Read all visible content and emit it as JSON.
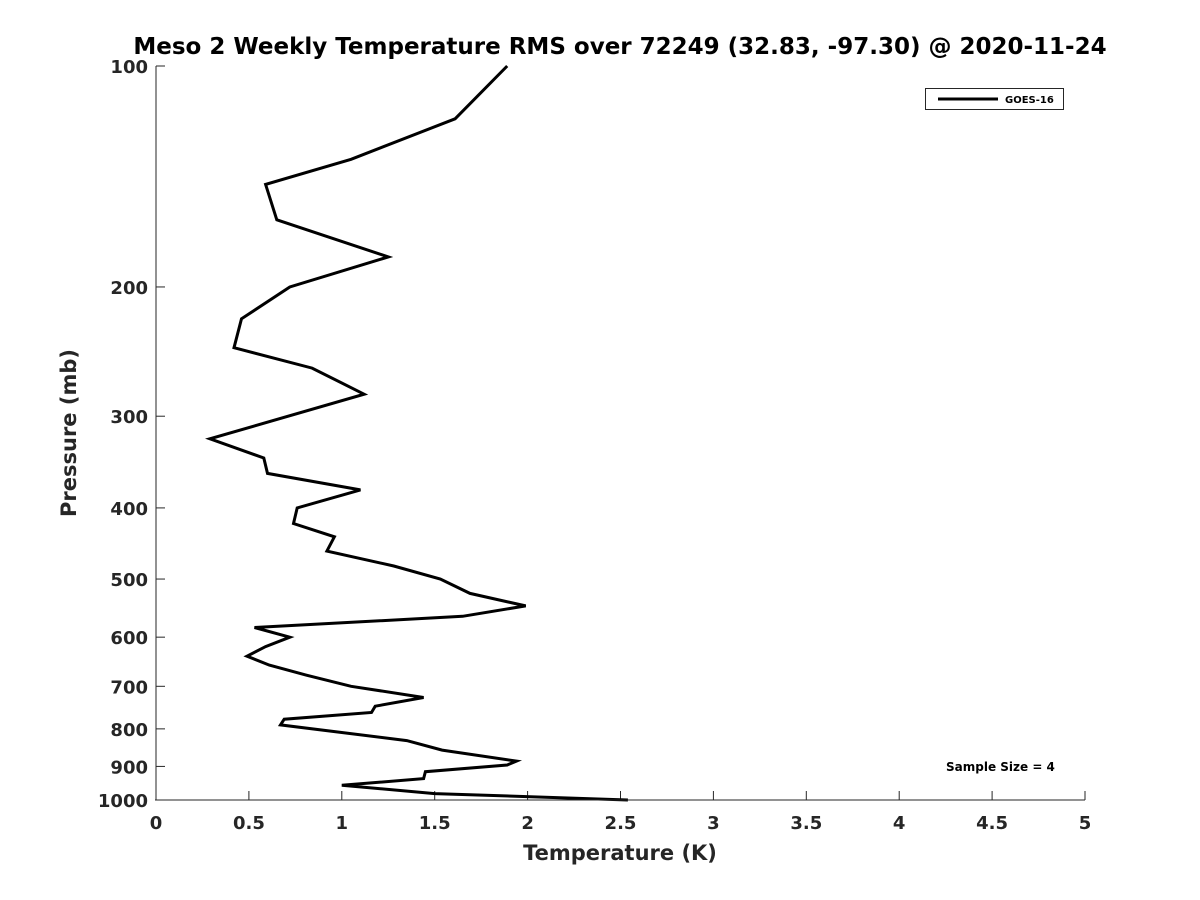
{
  "chart_data": {
    "type": "line",
    "title": "Meso 2 Weekly Temperature RMS over 72249 (32.83, -97.30) @ 2020-11-24",
    "xlabel": "Temperature (K)",
    "ylabel": "Pressure (mb)",
    "xlim": [
      0,
      5
    ],
    "ylim": [
      100,
      1000
    ],
    "y_scale": "log",
    "y_reversed": true,
    "grid": false,
    "x_ticks": [
      0,
      0.5,
      1,
      1.5,
      2,
      2.5,
      3,
      3.5,
      4,
      4.5,
      5
    ],
    "x_tick_labels": [
      "0",
      "0.5",
      "1",
      "1.5",
      "2",
      "2.5",
      "3",
      "3.5",
      "4",
      "4.5",
      "5"
    ],
    "y_ticks": [
      100,
      200,
      300,
      400,
      500,
      600,
      700,
      800,
      900,
      1000
    ],
    "y_tick_labels": [
      "100",
      "200",
      "300",
      "400",
      "500",
      "600",
      "700",
      "800",
      "900",
      "1000"
    ],
    "legend_position": "top-right",
    "series": [
      {
        "name": "GOES-16",
        "color": "#000000",
        "x": [
          1.89,
          1.61,
          1.05,
          0.59,
          0.65,
          1.25,
          0.72,
          0.46,
          0.42,
          0.84,
          1.12,
          0.29,
          0.58,
          0.6,
          1.1,
          0.76,
          0.74,
          0.96,
          0.92,
          1.28,
          1.53,
          1.69,
          1.99,
          1.65,
          0.53,
          0.72,
          0.59,
          0.49,
          0.61,
          0.81,
          1.05,
          1.44,
          1.18,
          1.16,
          0.69,
          0.67,
          1.35,
          1.54,
          1.94,
          1.89,
          1.45,
          1.44,
          1.0,
          1.5,
          2.54
        ],
        "y": [
          100,
          118,
          134,
          145,
          162,
          182,
          200,
          221,
          242,
          258,
          280,
          322,
          342,
          359,
          378,
          400,
          420,
          438,
          458,
          480,
          500,
          523,
          544,
          562,
          582,
          600,
          618,
          637,
          655,
          676,
          700,
          725,
          745,
          760,
          776,
          790,
          830,
          855,
          885,
          896,
          915,
          935,
          955,
          980,
          1000
        ]
      }
    ],
    "annotations": [
      "Sample Size = 4"
    ]
  }
}
